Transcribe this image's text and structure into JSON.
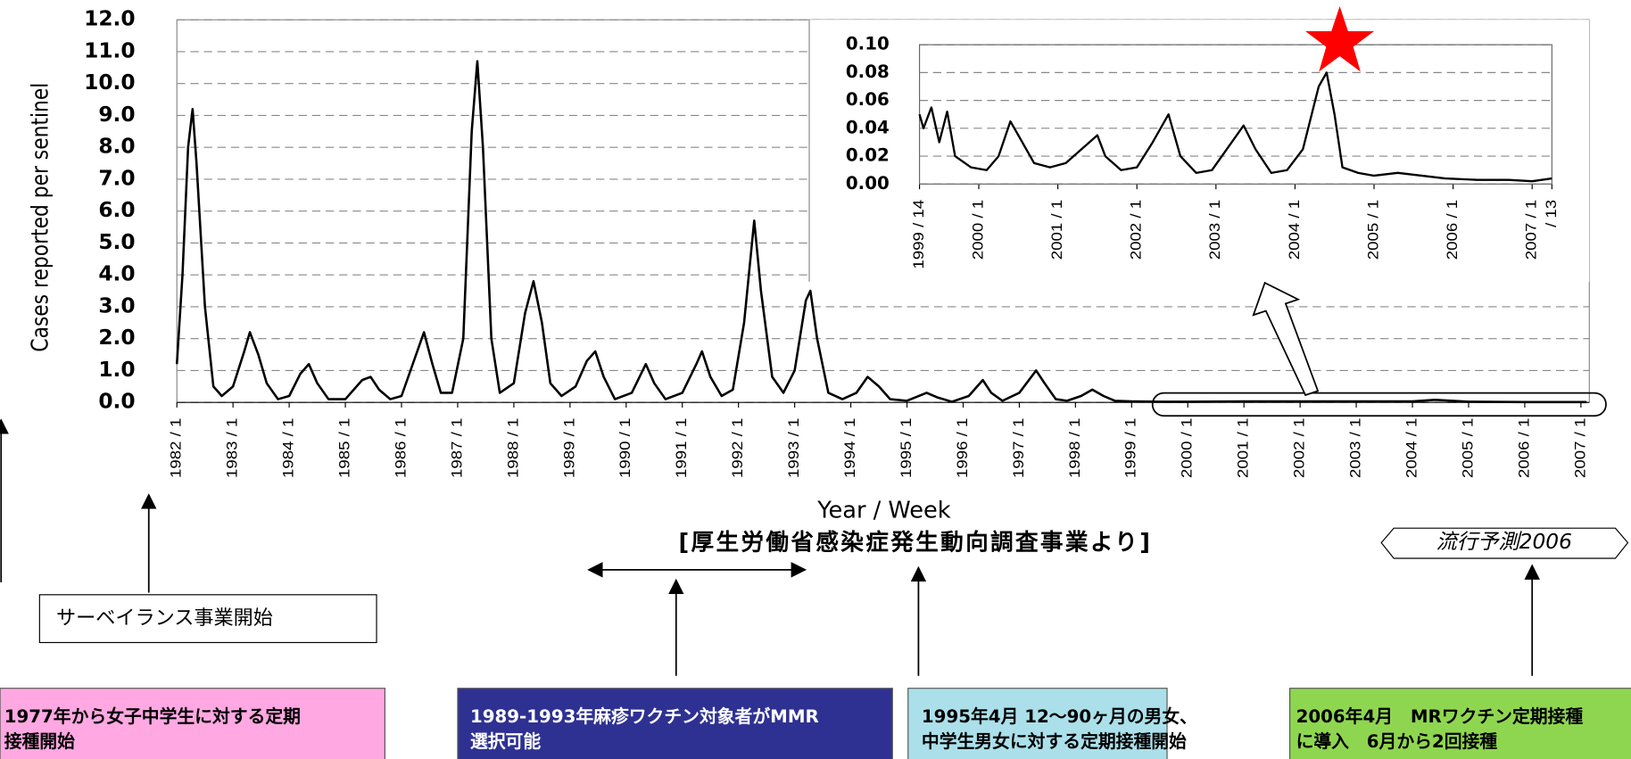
{
  "chart_data": [
    {
      "type": "line",
      "y_label": "Cases reported per sentinel",
      "x_label": "Year / Week",
      "x": [
        1982.0,
        1982.1,
        1982.2,
        1982.28,
        1982.35,
        1982.5,
        1982.65,
        1982.8,
        1983.0,
        1983.2,
        1983.3,
        1983.45,
        1983.6,
        1983.8,
        1984.0,
        1984.2,
        1984.35,
        1984.5,
        1984.7,
        1985.0,
        1985.3,
        1985.45,
        1985.6,
        1985.8,
        1986.0,
        1986.2,
        1986.4,
        1986.55,
        1986.7,
        1986.9,
        1987.1,
        1987.25,
        1987.35,
        1987.45,
        1987.6,
        1987.75,
        1988.0,
        1988.2,
        1988.35,
        1988.5,
        1988.65,
        1988.85,
        1989.1,
        1989.3,
        1989.45,
        1989.6,
        1989.8,
        1990.1,
        1990.35,
        1990.5,
        1990.7,
        1991.0,
        1991.25,
        1991.35,
        1991.5,
        1991.7,
        1991.9,
        1992.1,
        1992.28,
        1992.4,
        1992.6,
        1992.8,
        1993.0,
        1993.2,
        1993.28,
        1993.4,
        1993.6,
        1993.85,
        1994.1,
        1994.3,
        1994.5,
        1994.7,
        1995.0,
        1995.35,
        1995.55,
        1995.8,
        1996.1,
        1996.35,
        1996.5,
        1996.7,
        1997.0,
        1997.3,
        1997.45,
        1997.65,
        1997.85,
        1998.1,
        1998.3,
        1998.5,
        1998.7,
        1999.0,
        1999.5,
        2000.0,
        2001.0,
        2002.0,
        2003.0,
        2004.0,
        2004.4,
        2005.0,
        2006.0,
        2007.1
      ],
      "series": [
        {
          "name": "Cases",
          "color": "#000000",
          "values": [
            1.2,
            4.0,
            8.0,
            9.2,
            7.5,
            3.0,
            0.5,
            0.2,
            0.5,
            1.6,
            2.2,
            1.5,
            0.6,
            0.1,
            0.2,
            0.9,
            1.2,
            0.6,
            0.1,
            0.1,
            0.7,
            0.8,
            0.4,
            0.1,
            0.2,
            1.2,
            2.2,
            1.2,
            0.3,
            0.3,
            2.0,
            8.5,
            10.7,
            8.0,
            2.0,
            0.3,
            0.6,
            2.8,
            3.8,
            2.5,
            0.6,
            0.2,
            0.5,
            1.3,
            1.6,
            0.8,
            0.1,
            0.3,
            1.2,
            0.6,
            0.1,
            0.3,
            1.2,
            1.6,
            0.8,
            0.2,
            0.4,
            2.5,
            5.7,
            3.5,
            0.8,
            0.3,
            1.0,
            3.2,
            3.5,
            2.0,
            0.3,
            0.1,
            0.3,
            0.8,
            0.5,
            0.1,
            0.05,
            0.3,
            0.15,
            0.02,
            0.2,
            0.7,
            0.3,
            0.05,
            0.3,
            1.0,
            0.6,
            0.1,
            0.05,
            0.2,
            0.4,
            0.2,
            0.05,
            0.03,
            0.02,
            0.02,
            0.03,
            0.03,
            0.03,
            0.03,
            0.08,
            0.02,
            0.01,
            0.01
          ]
        }
      ],
      "xlim": [
        1982,
        2007.15
      ],
      "xticks": [
        {
          "value": 1982,
          "label": "1982 / 1"
        },
        {
          "value": 1983,
          "label": "1983 / 1"
        },
        {
          "value": 1984,
          "label": "1984 / 1"
        },
        {
          "value": 1985,
          "label": "1985 / 1"
        },
        {
          "value": 1986,
          "label": "1986 / 1"
        },
        {
          "value": 1987,
          "label": "1987 / 1"
        },
        {
          "value": 1988,
          "label": "1988 / 1"
        },
        {
          "value": 1989,
          "label": "1989 / 1"
        },
        {
          "value": 1990,
          "label": "1990 / 1"
        },
        {
          "value": 1991,
          "label": "1991 / 1"
        },
        {
          "value": 1992,
          "label": "1992 / 1"
        },
        {
          "value": 1993,
          "label": "1993 / 1"
        },
        {
          "value": 1994,
          "label": "1994 / 1"
        },
        {
          "value": 1995,
          "label": "1995 / 1"
        },
        {
          "value": 1996,
          "label": "1996 / 1"
        },
        {
          "value": 1997,
          "label": "1997 / 1"
        },
        {
          "value": 1998,
          "label": "1998 / 1"
        },
        {
          "value": 1999,
          "label": "1999 / 1"
        },
        {
          "value": 2000,
          "label": "2000 / 1"
        },
        {
          "value": 2001,
          "label": "2001 / 1"
        },
        {
          "value": 2002,
          "label": "2002 / 1"
        },
        {
          "value": 2003,
          "label": "2003 / 1"
        },
        {
          "value": 2004,
          "label": "2004 / 1"
        },
        {
          "value": 2005,
          "label": "2005 / 1"
        },
        {
          "value": 2006,
          "label": "2006 / 1"
        },
        {
          "value": 2007,
          "label": "2007 / 1"
        }
      ],
      "ylim": [
        0,
        12
      ],
      "yticks": [
        {
          "value": 0,
          "label": "0.0"
        },
        {
          "value": 1,
          "label": "1.0"
        },
        {
          "value": 2,
          "label": "2.0"
        },
        {
          "value": 3,
          "label": "3.0"
        },
        {
          "value": 4,
          "label": "4.0"
        },
        {
          "value": 5,
          "label": "5.0"
        },
        {
          "value": 6,
          "label": "6.0"
        },
        {
          "value": 7,
          "label": "7.0"
        },
        {
          "value": 8,
          "label": "8.0"
        },
        {
          "value": 9,
          "label": "9.0"
        },
        {
          "value": 10,
          "label": "10.0"
        },
        {
          "value": 11,
          "label": "11.0"
        },
        {
          "value": 12,
          "label": "12.0"
        }
      ],
      "grid": true
    },
    {
      "type": "line",
      "x": [
        1999.25,
        1999.3,
        1999.4,
        1999.5,
        1999.6,
        1999.7,
        1999.9,
        2000.1,
        2000.25,
        2000.4,
        2000.55,
        2000.7,
        2000.9,
        2001.1,
        2001.3,
        2001.5,
        2001.6,
        2001.8,
        2002.0,
        2002.2,
        2002.4,
        2002.55,
        2002.75,
        2002.95,
        2003.2,
        2003.35,
        2003.5,
        2003.7,
        2003.9,
        2004.1,
        2004.3,
        2004.4,
        2004.5,
        2004.6,
        2004.8,
        2005.0,
        2005.3,
        2005.6,
        2005.9,
        2006.3,
        2006.7,
        2007.0,
        2007.25
      ],
      "series": [
        {
          "name": "Cases 1999-2007",
          "color": "#000000",
          "values": [
            0.05,
            0.04,
            0.055,
            0.03,
            0.052,
            0.02,
            0.012,
            0.01,
            0.02,
            0.045,
            0.03,
            0.015,
            0.012,
            0.015,
            0.025,
            0.035,
            0.02,
            0.01,
            0.012,
            0.03,
            0.05,
            0.02,
            0.008,
            0.01,
            0.03,
            0.042,
            0.025,
            0.008,
            0.01,
            0.025,
            0.07,
            0.08,
            0.05,
            0.012,
            0.008,
            0.006,
            0.008,
            0.006,
            0.004,
            0.003,
            0.003,
            0.002,
            0.004
          ]
        }
      ],
      "xlim": [
        1999.25,
        2007.25
      ],
      "xticks": [
        {
          "value": 1999.25,
          "label": "1999 / 14"
        },
        {
          "value": 2000,
          "label": "2000 / 1"
        },
        {
          "value": 2001,
          "label": "2001 / 1"
        },
        {
          "value": 2002,
          "label": "2002 / 1"
        },
        {
          "value": 2003,
          "label": "2003 / 1"
        },
        {
          "value": 2004,
          "label": "2004 / 1"
        },
        {
          "value": 2005,
          "label": "2005 / 1"
        },
        {
          "value": 2006,
          "label": "2006 / 1"
        },
        {
          "value": 2007,
          "label": "2007 / 1"
        },
        {
          "value": 2007.25,
          "label": "/ 13"
        }
      ],
      "ylim": [
        0,
        0.1
      ],
      "yticks": [
        {
          "value": 0,
          "label": "0.00"
        },
        {
          "value": 0.02,
          "label": "0.02"
        },
        {
          "value": 0.04,
          "label": "0.04"
        },
        {
          "value": 0.06,
          "label": "0.06"
        },
        {
          "value": 0.08,
          "label": "0.08"
        },
        {
          "value": 0.1,
          "label": "0.10"
        }
      ],
      "grid": true
    }
  ],
  "annotations": {
    "source": "[厚生労働省感染症発生動向調査事業より]",
    "forecast": "流行予測2006",
    "surveillance": "サーベイランス事業開始",
    "boxes": [
      {
        "lines": [
          "1977年から女子中学生に対する定期",
          "接種開始"
        ]
      },
      {
        "lines": [
          "1989-1993年麻疹ワクチン対象者がMMR",
          "選択可能"
        ]
      },
      {
        "lines": [
          "1995年4月 12～90ヶ月の男女、",
          "中学生男女に対する定期接種開始"
        ]
      },
      {
        "lines": [
          "2006年4月　MRワクチン定期接種",
          "に導入　6月から2回接種"
        ]
      }
    ]
  }
}
